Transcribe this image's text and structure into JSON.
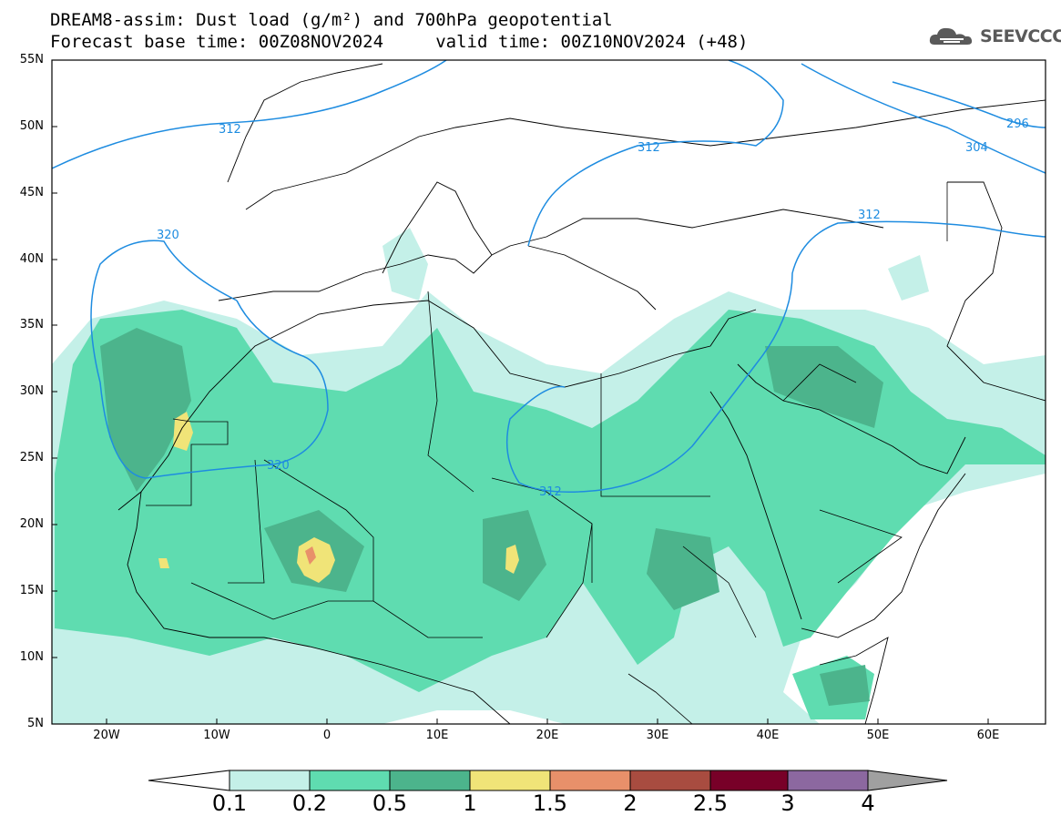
{
  "header": {
    "title_line1": "DREAM8-assim: Dust load (g/m²) and 700hPa geopotential",
    "title_line2": "Forecast base time: 00Z08NOV2024     valid time: 00Z10NOV2024 (+48)",
    "logo": "SEEVCCC"
  },
  "map": {
    "lat_labels": [
      "55N",
      "50N",
      "45N",
      "40N",
      "35N",
      "30N",
      "25N",
      "20N",
      "15N",
      "10N",
      "5N"
    ],
    "lon_labels": [
      "20W",
      "10W",
      "0",
      "10E",
      "20E",
      "30E",
      "40E",
      "50E",
      "60E"
    ],
    "contour_labels": [
      "312",
      "320",
      "320",
      "312",
      "312",
      "312",
      "304",
      "296"
    ],
    "shading_colors": [
      "#c4f0e8",
      "#5fdcb0",
      "#4cb48c",
      "#f0e478",
      "#e8906a",
      "#a84c40",
      "#780028",
      "#8c68a0"
    ]
  },
  "colorbar": {
    "labels": [
      "0.1",
      "0.2",
      "0.5",
      "1",
      "1.5",
      "2",
      "2.5",
      "3",
      "4"
    ],
    "colors": [
      "#c4f0e8",
      "#5fdcb0",
      "#4cb48c",
      "#f0e478",
      "#e8906a",
      "#a84c40",
      "#780028",
      "#8c68a0",
      "#a0a0a0"
    ]
  }
}
